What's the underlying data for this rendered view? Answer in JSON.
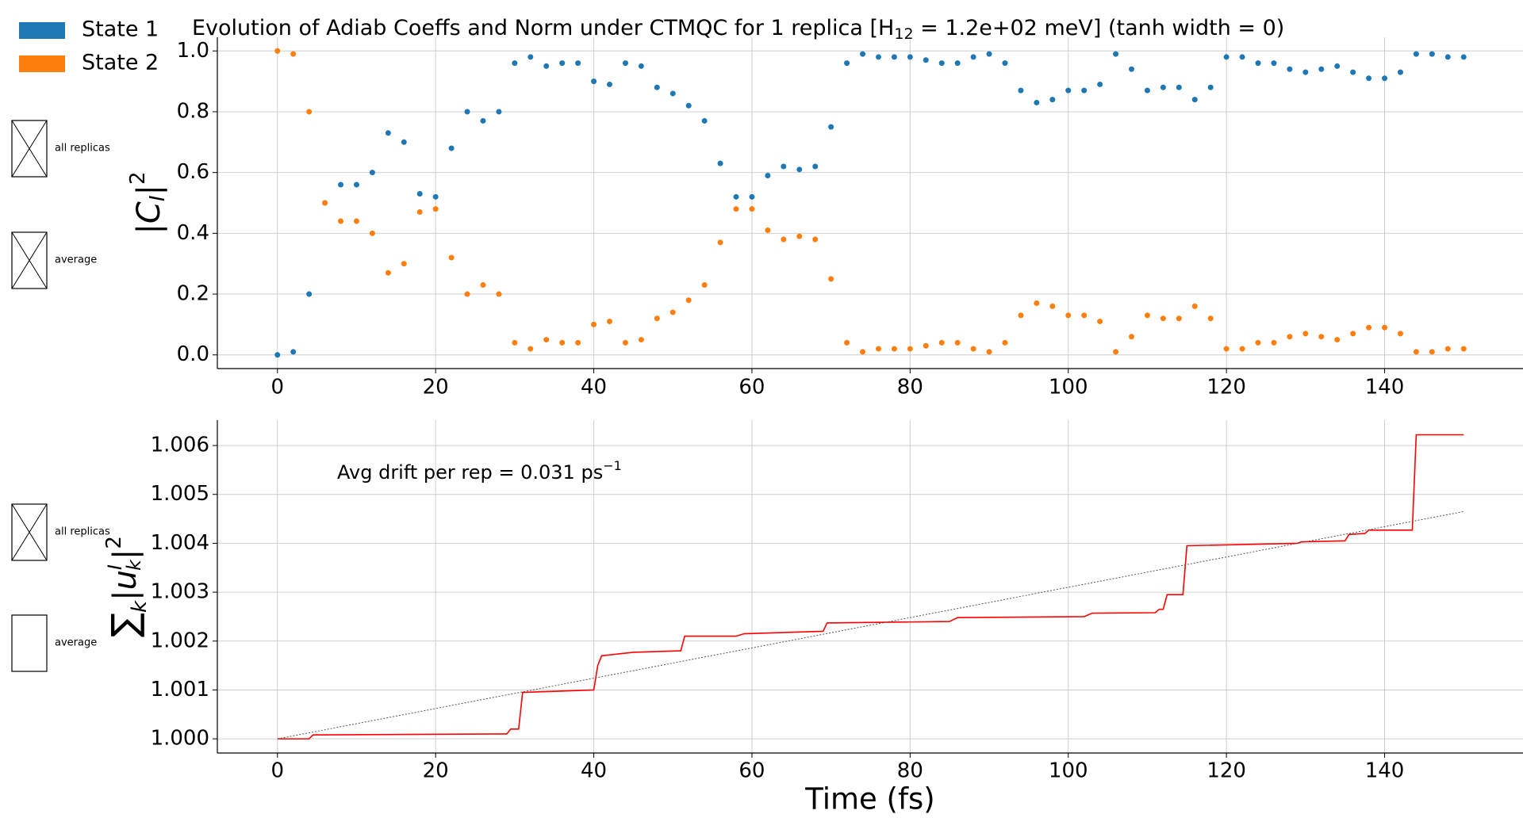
{
  "chart_data": [
    {
      "type": "scatter",
      "title_parts": [
        "Evolution of Adiab Coeffs and Norm under CTMQC for 1 replica [H",
        "12",
        " = 1.2e+02 meV]   (tanh width = 0)"
      ],
      "y_label_parts": [
        "|C",
        "I",
        "|",
        "2"
      ],
      "legend": "upper left",
      "grid": true,
      "x": [
        0,
        2,
        4,
        6,
        8,
        10,
        12,
        14,
        16,
        18,
        20,
        22,
        24,
        26,
        28,
        30,
        32,
        34,
        36,
        38,
        40,
        42,
        44,
        46,
        48,
        50,
        52,
        54,
        56,
        58,
        60,
        62,
        64,
        66,
        68,
        70,
        72,
        74,
        76,
        78,
        80,
        82,
        84,
        86,
        88,
        90,
        92,
        94,
        96,
        98,
        100,
        102,
        104,
        106,
        108,
        110,
        112,
        114,
        116,
        118,
        120,
        122,
        124,
        126,
        128,
        130,
        132,
        134,
        136,
        138,
        140,
        142,
        144,
        146,
        148,
        150
      ],
      "series": [
        {
          "name": "State 1",
          "color": "#1f77b4",
          "values": [
            0,
            0.01,
            0.2,
            0.5,
            0.56,
            0.56,
            0.6,
            0.73,
            0.7,
            0.53,
            0.52,
            0.68,
            0.8,
            0.77,
            0.8,
            0.96,
            0.98,
            0.95,
            0.96,
            0.96,
            0.9,
            0.89,
            0.96,
            0.95,
            0.88,
            0.86,
            0.82,
            0.77,
            0.63,
            0.52,
            0.52,
            0.59,
            0.62,
            0.61,
            0.62,
            0.75,
            0.96,
            0.99,
            0.98,
            0.98,
            0.98,
            0.97,
            0.96,
            0.96,
            0.98,
            0.99,
            0.96,
            0.87,
            0.83,
            0.84,
            0.87,
            0.87,
            0.89,
            0.99,
            0.94,
            0.87,
            0.88,
            0.88,
            0.84,
            0.88,
            0.98,
            0.98,
            0.96,
            0.96,
            0.94,
            0.93,
            0.94,
            0.95,
            0.93,
            0.91,
            0.91,
            0.93,
            0.99,
            0.99,
            0.98,
            0.98
          ]
        },
        {
          "name": "State 2",
          "color": "#ff7f0e",
          "values": [
            1,
            0.99,
            0.8,
            0.5,
            0.44,
            0.44,
            0.4,
            0.27,
            0.3,
            0.47,
            0.48,
            0.32,
            0.2,
            0.23,
            0.2,
            0.04,
            0.02,
            0.05,
            0.04,
            0.04,
            0.1,
            0.11,
            0.04,
            0.05,
            0.12,
            0.14,
            0.18,
            0.23,
            0.37,
            0.48,
            0.48,
            0.41,
            0.38,
            0.39,
            0.38,
            0.25,
            0.04,
            0.01,
            0.02,
            0.02,
            0.02,
            0.03,
            0.04,
            0.04,
            0.02,
            0.01,
            0.04,
            0.13,
            0.17,
            0.16,
            0.13,
            0.13,
            0.11,
            0.01,
            0.06,
            0.13,
            0.12,
            0.12,
            0.16,
            0.12,
            0.02,
            0.02,
            0.04,
            0.04,
            0.06,
            0.07,
            0.06,
            0.05,
            0.07,
            0.09,
            0.09,
            0.07,
            0.01,
            0.01,
            0.02,
            0.02
          ]
        }
      ],
      "xlim": [
        -7.6,
        157.5
      ],
      "xticks": [
        0,
        20,
        40,
        60,
        80,
        100,
        120,
        140
      ],
      "ylim": [
        -0.045,
        1.045
      ],
      "yticks": [
        {
          "value": 0,
          "label": "0.0"
        },
        {
          "value": 0.2,
          "label": "0.2"
        },
        {
          "value": 0.4,
          "label": "0.4"
        },
        {
          "value": 0.6,
          "label": "0.6"
        },
        {
          "value": 0.8,
          "label": "0.8"
        },
        {
          "value": 1,
          "label": "1.0"
        }
      ],
      "checkboxes": [
        {
          "label": "all replicas",
          "checked": true
        },
        {
          "label": "average",
          "checked": true
        }
      ]
    },
    {
      "type": "line",
      "y_label_parts": [
        "∑",
        "k",
        "|u",
        "I",
        "k",
        "|",
        "2"
      ],
      "x_label": "Time (fs)",
      "annotation_parts": [
        "Avg drift per rep = 0.031 ps",
        "−1"
      ],
      "grid": true,
      "series": [
        {
          "color": "#ff0000",
          "style": "solid",
          "x": [
            0,
            4,
            4.5,
            29,
            29.5,
            30.5,
            31,
            40,
            40.5,
            41,
            45,
            51,
            51.5,
            58,
            59,
            69,
            69.5,
            85,
            86,
            102,
            103,
            111,
            111.5,
            112,
            112.5,
            114.5,
            115,
            129,
            129.5,
            135,
            135.5,
            137.5,
            138,
            143.5,
            144,
            150
          ],
          "values": [
            1.0,
            1.0,
            1.00008,
            1.0001,
            1.0002,
            1.0002,
            1.00095,
            1.001,
            1.0015,
            1.0017,
            1.00177,
            1.0018,
            1.0021,
            1.0021,
            1.00215,
            1.0022,
            1.00237,
            1.0024,
            1.00248,
            1.0025,
            1.00257,
            1.00258,
            1.00265,
            1.00265,
            1.00295,
            1.00295,
            1.00395,
            1.004,
            1.00403,
            1.00405,
            1.00418,
            1.0042,
            1.00427,
            1.00427,
            1.00622,
            1.00622
          ]
        },
        {
          "color": "#555555",
          "style": "dotted",
          "x": [
            0,
            150
          ],
          "values": [
            1.0,
            1.00465
          ]
        }
      ],
      "xlim": [
        -7.6,
        157.5
      ],
      "xticks": [
        0,
        20,
        40,
        60,
        80,
        100,
        120,
        140
      ],
      "ylim": [
        0.99971,
        1.00652
      ],
      "yticks": [
        {
          "value": 1,
          "label": "1.000"
        },
        {
          "value": 1.001,
          "label": "1.001"
        },
        {
          "value": 1.002,
          "label": "1.002"
        },
        {
          "value": 1.003,
          "label": "1.003"
        },
        {
          "value": 1.004,
          "label": "1.004"
        },
        {
          "value": 1.005,
          "label": "1.005"
        },
        {
          "value": 1.006,
          "label": "1.006"
        }
      ],
      "checkboxes": [
        {
          "label": "all replicas",
          "checked": true
        },
        {
          "label": "average",
          "checked": false
        }
      ]
    }
  ]
}
